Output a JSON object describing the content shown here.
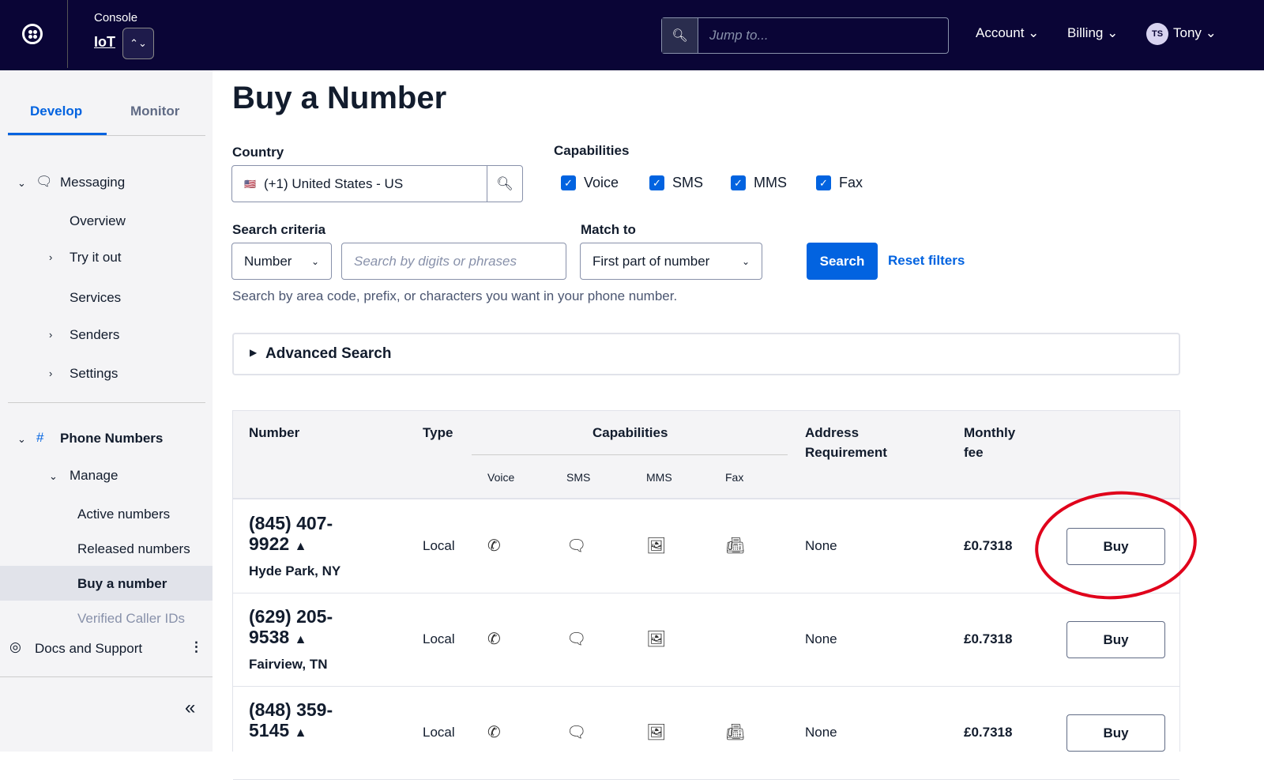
{
  "header": {
    "console": "Console",
    "product": "IoT",
    "search_placeholder": "Jump to...",
    "account": "Account",
    "billing": "Billing",
    "avatar_initials": "TS",
    "user": "Tony"
  },
  "sidebar": {
    "tabs": [
      "Develop",
      "Monitor"
    ],
    "messaging": "Messaging",
    "items": [
      "Overview",
      "Try it out",
      "Services",
      "Senders",
      "Settings"
    ],
    "phone_numbers": "Phone Numbers",
    "manage": "Manage",
    "manage_items": [
      "Active numbers",
      "Released numbers",
      "Buy a number",
      "Verified Caller IDs"
    ],
    "docs": "Docs and Support"
  },
  "page": {
    "title": "Buy a Number",
    "country_label": "Country",
    "country_value": "(+1) United States - US",
    "capabilities_label": "Capabilities",
    "capabilities": [
      "Voice",
      "SMS",
      "MMS",
      "Fax"
    ],
    "search_criteria_label": "Search criteria",
    "criteria_value": "Number",
    "search_placeholder": "Search by digits or phrases",
    "match_label": "Match to",
    "match_value": "First part of number",
    "search_button": "Search",
    "reset": "Reset filters",
    "help": "Search by area code, prefix, or characters you want in your phone number.",
    "advanced": "Advanced Search"
  },
  "table": {
    "headers": {
      "number": "Number",
      "type": "Type",
      "capabilities": "Capabilities",
      "address": "Address Requirement",
      "fee": "Monthly fee"
    },
    "sub": [
      "Voice",
      "SMS",
      "MMS",
      "Fax"
    ],
    "rows": [
      {
        "number": "(845) 407-9922",
        "location": "Hyde Park, NY",
        "type": "Local",
        "fax": true,
        "address": "None",
        "fee": "£0.7318",
        "buy": "Buy"
      },
      {
        "number": "(629) 205-9538",
        "location": "Fairview, TN",
        "type": "Local",
        "fax": false,
        "address": "None",
        "fee": "£0.7318",
        "buy": "Buy"
      },
      {
        "number": "(848) 359-5145",
        "location": "",
        "type": "Local",
        "fax": true,
        "address": "None",
        "fee": "£0.7318",
        "buy": "Buy"
      }
    ]
  },
  "colors": {
    "header_bg": "#0a0536",
    "accent": "#0263e0",
    "highlight": "#e0001b"
  }
}
